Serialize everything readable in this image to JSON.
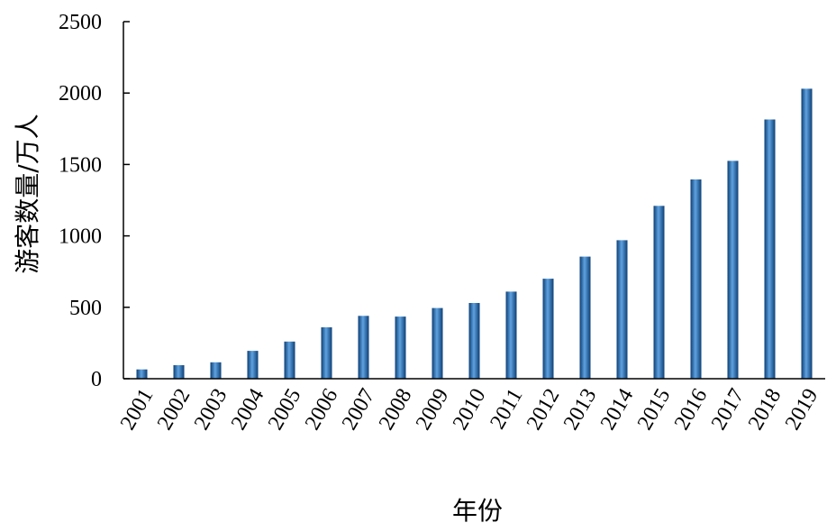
{
  "chart_data": {
    "type": "bar",
    "title": "",
    "xlabel": "年份",
    "ylabel": "游客数量/万人",
    "categories": [
      "2001",
      "2002",
      "2003",
      "2004",
      "2005",
      "2006",
      "2007",
      "2008",
      "2009",
      "2010",
      "2011",
      "2012",
      "2013",
      "2014",
      "2015",
      "2016",
      "2017",
      "2018",
      "2019"
    ],
    "values": [
      65,
      95,
      115,
      195,
      260,
      360,
      440,
      435,
      495,
      530,
      610,
      700,
      855,
      970,
      1210,
      1395,
      1525,
      1815,
      2030
    ],
    "ylim": [
      0,
      2500
    ],
    "yticks": [
      "0",
      "500",
      "1000",
      "1500",
      "2000",
      "2500"
    ],
    "grid": false,
    "legend": "none",
    "colors": {
      "bar": "#1f6fb8",
      "bar_dark": "#0d3f75",
      "bar_light": "#5fa2e0"
    }
  }
}
